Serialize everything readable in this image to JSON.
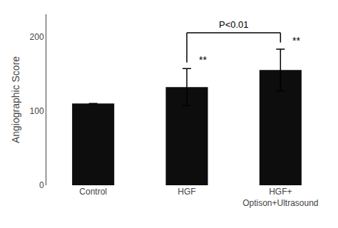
{
  "chart_data": {
    "type": "bar",
    "categories": [
      "Control",
      "HGF",
      "HGF+\nOptison+Ultrasound"
    ],
    "values": [
      110,
      132,
      155
    ],
    "errors": [
      0,
      25,
      28
    ],
    "color": "#0d0d0d",
    "ylabel": "Angiographic Score",
    "ylim": [
      0,
      230
    ],
    "yticks": [
      0,
      100,
      200
    ],
    "grid": false,
    "annotations": [
      {
        "text": "**",
        "category": "HGF"
      },
      {
        "text": "**",
        "category": "HGF+\nOptison+Ultrasound"
      }
    ],
    "bracket": {
      "text": "P<0.01",
      "from": "HGF",
      "to": "HGF+\nOptison+Ultrasound",
      "y_top": 205,
      "y_left_bottom": 165,
      "y_right_bottom": 192
    }
  }
}
